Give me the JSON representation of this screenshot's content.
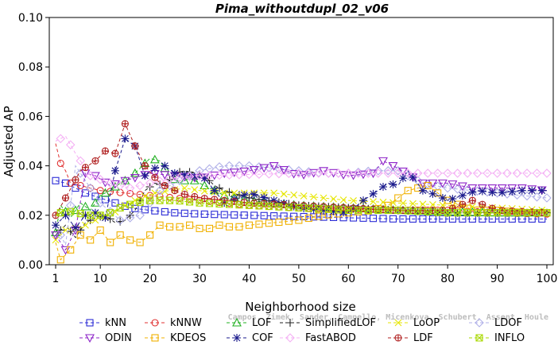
{
  "chart_data": {
    "type": "line",
    "title": "Pima_withoutdupl_02_v06",
    "xlabel": "Neighborhood size",
    "ylabel": "Adjusted AP",
    "xlim": [
      1,
      100
    ],
    "ylim": [
      0,
      0.1
    ],
    "x_ticks": [
      1,
      10,
      20,
      30,
      40,
      50,
      60,
      70,
      80,
      90,
      100
    ],
    "y_ticks": [
      0.0,
      0.02,
      0.04,
      0.06,
      0.08,
      0.1
    ],
    "y_tick_labels": [
      "0.00",
      "0.02",
      "0.04",
      "0.06",
      "0.08",
      "0.10"
    ],
    "grid": false,
    "legend_position": "bottom",
    "x_range": [
      1,
      100
    ],
    "series": [
      {
        "name": "kNN",
        "color": "#2b2bd6",
        "marker": "square",
        "points": [
          [
            1,
            0.034
          ],
          [
            3,
            0.033
          ],
          [
            5,
            0.031
          ],
          [
            7,
            0.029
          ],
          [
            10,
            0.027
          ],
          [
            13,
            0.025
          ],
          [
            16,
            0.023
          ],
          [
            20,
            0.022
          ],
          [
            25,
            0.021
          ],
          [
            30,
            0.0205
          ],
          [
            40,
            0.02
          ],
          [
            50,
            0.0195
          ],
          [
            60,
            0.019
          ],
          [
            70,
            0.0185
          ],
          [
            80,
            0.0185
          ],
          [
            90,
            0.0185
          ],
          [
            100,
            0.0185
          ]
        ]
      },
      {
        "name": "kNNW",
        "color": "#e03030",
        "marker": "circle",
        "points": [
          [
            1,
            0.049
          ],
          [
            2,
            0.041
          ],
          [
            3,
            0.038
          ],
          [
            4,
            0.033
          ],
          [
            6,
            0.032
          ],
          [
            8,
            0.031
          ],
          [
            10,
            0.03
          ],
          [
            15,
            0.029
          ],
          [
            20,
            0.028
          ],
          [
            25,
            0.027
          ],
          [
            30,
            0.026
          ],
          [
            40,
            0.024
          ],
          [
            50,
            0.023
          ],
          [
            60,
            0.0225
          ],
          [
            70,
            0.022
          ],
          [
            80,
            0.022
          ],
          [
            90,
            0.021
          ],
          [
            100,
            0.0205
          ]
        ]
      },
      {
        "name": "LOF",
        "color": "#22b022",
        "marker": "triangle-up",
        "points": [
          [
            1,
            0.013
          ],
          [
            2,
            0.024
          ],
          [
            4,
            0.019
          ],
          [
            6,
            0.025
          ],
          [
            8,
            0.022
          ],
          [
            10,
            0.028
          ],
          [
            12,
            0.03
          ],
          [
            14,
            0.033
          ],
          [
            16,
            0.035
          ],
          [
            18,
            0.039
          ],
          [
            20,
            0.043
          ],
          [
            22,
            0.042
          ],
          [
            24,
            0.036
          ],
          [
            26,
            0.033
          ],
          [
            28,
            0.035
          ],
          [
            30,
            0.033
          ],
          [
            35,
            0.028
          ],
          [
            40,
            0.026
          ],
          [
            50,
            0.024
          ],
          [
            60,
            0.023
          ],
          [
            70,
            0.022
          ],
          [
            80,
            0.0215
          ],
          [
            90,
            0.021
          ],
          [
            100,
            0.021
          ]
        ]
      },
      {
        "name": "SimplifiedLOF",
        "color": "#222222",
        "marker": "plus",
        "points": [
          [
            1,
            0.012
          ],
          [
            3,
            0.016
          ],
          [
            5,
            0.011
          ],
          [
            7,
            0.017
          ],
          [
            9,
            0.019
          ],
          [
            11,
            0.02
          ],
          [
            13,
            0.017
          ],
          [
            15,
            0.018
          ],
          [
            17,
            0.022
          ],
          [
            19,
            0.03
          ],
          [
            21,
            0.033
          ],
          [
            23,
            0.032
          ],
          [
            25,
            0.037
          ],
          [
            27,
            0.038
          ],
          [
            29,
            0.037
          ],
          [
            31,
            0.036
          ],
          [
            33,
            0.032
          ],
          [
            35,
            0.03
          ],
          [
            40,
            0.027
          ],
          [
            50,
            0.024
          ],
          [
            60,
            0.023
          ],
          [
            70,
            0.022
          ],
          [
            80,
            0.021
          ],
          [
            90,
            0.021
          ],
          [
            100,
            0.021
          ]
        ]
      },
      {
        "name": "LoOP",
        "color": "#e6e600",
        "marker": "x",
        "points": [
          [
            1,
            0.01
          ],
          [
            3,
            0.014
          ],
          [
            6,
            0.015
          ],
          [
            9,
            0.018
          ],
          [
            12,
            0.02
          ],
          [
            15,
            0.024
          ],
          [
            18,
            0.027
          ],
          [
            21,
            0.029
          ],
          [
            24,
            0.03
          ],
          [
            27,
            0.031
          ],
          [
            30,
            0.03
          ],
          [
            35,
            0.029
          ],
          [
            40,
            0.029
          ],
          [
            45,
            0.029
          ],
          [
            50,
            0.028
          ],
          [
            55,
            0.027
          ],
          [
            60,
            0.026
          ],
          [
            70,
            0.025
          ],
          [
            80,
            0.024
          ],
          [
            90,
            0.023
          ],
          [
            100,
            0.022
          ]
        ]
      },
      {
        "name": "LDOF",
        "color": "#b0b0e8",
        "marker": "diamond",
        "points": [
          [
            1,
            0.016
          ],
          [
            3,
            0.008
          ],
          [
            5,
            0.04
          ],
          [
            7,
            0.034
          ],
          [
            10,
            0.025
          ],
          [
            14,
            0.018
          ],
          [
            18,
            0.02
          ],
          [
            22,
            0.03
          ],
          [
            26,
            0.034
          ],
          [
            30,
            0.038
          ],
          [
            35,
            0.04
          ],
          [
            40,
            0.04
          ],
          [
            45,
            0.039
          ],
          [
            50,
            0.038
          ],
          [
            55,
            0.037
          ],
          [
            60,
            0.037
          ],
          [
            65,
            0.038
          ],
          [
            70,
            0.038
          ],
          [
            75,
            0.033
          ],
          [
            80,
            0.031
          ],
          [
            85,
            0.03
          ],
          [
            90,
            0.029
          ],
          [
            95,
            0.028
          ],
          [
            100,
            0.027
          ]
        ]
      },
      {
        "name": "ODIN",
        "color": "#8e24c8",
        "marker": "triangle-down",
        "points": [
          [
            1,
            0.012
          ],
          [
            3,
            0.006
          ],
          [
            5,
            0.014
          ],
          [
            7,
            0.037
          ],
          [
            9,
            0.036
          ],
          [
            12,
            0.032
          ],
          [
            15,
            0.034
          ],
          [
            20,
            0.037
          ],
          [
            25,
            0.036
          ],
          [
            30,
            0.035
          ],
          [
            35,
            0.037
          ],
          [
            40,
            0.038
          ],
          [
            45,
            0.04
          ],
          [
            50,
            0.036
          ],
          [
            55,
            0.038
          ],
          [
            60,
            0.036
          ],
          [
            65,
            0.037
          ],
          [
            67,
            0.042
          ],
          [
            70,
            0.039
          ],
          [
            75,
            0.033
          ],
          [
            80,
            0.033
          ],
          [
            85,
            0.031
          ],
          [
            90,
            0.031
          ],
          [
            95,
            0.031
          ],
          [
            100,
            0.03
          ]
        ]
      },
      {
        "name": "KDEOS",
        "color": "#f0b000",
        "marker": "square",
        "points": [
          [
            1,
            0.009
          ],
          [
            2,
            0.002
          ],
          [
            4,
            0.006
          ],
          [
            6,
            0.012
          ],
          [
            8,
            0.01
          ],
          [
            10,
            0.014
          ],
          [
            12,
            0.009
          ],
          [
            14,
            0.012
          ],
          [
            16,
            0.01
          ],
          [
            18,
            0.009
          ],
          [
            20,
            0.012
          ],
          [
            22,
            0.016
          ],
          [
            25,
            0.015
          ],
          [
            28,
            0.016
          ],
          [
            31,
            0.014
          ],
          [
            34,
            0.016
          ],
          [
            37,
            0.015
          ],
          [
            40,
            0.016
          ],
          [
            45,
            0.017
          ],
          [
            50,
            0.018
          ],
          [
            55,
            0.02
          ],
          [
            60,
            0.021
          ],
          [
            65,
            0.022
          ],
          [
            68,
            0.024
          ],
          [
            72,
            0.03
          ],
          [
            76,
            0.032
          ],
          [
            80,
            0.026
          ],
          [
            85,
            0.022
          ],
          [
            90,
            0.022
          ],
          [
            95,
            0.021
          ],
          [
            100,
            0.021
          ]
        ]
      },
      {
        "name": "COF",
        "color": "#1a1a8c",
        "marker": "star",
        "points": [
          [
            1,
            0.016
          ],
          [
            3,
            0.02
          ],
          [
            5,
            0.015
          ],
          [
            7,
            0.02
          ],
          [
            9,
            0.021
          ],
          [
            11,
            0.019
          ],
          [
            13,
            0.038
          ],
          [
            15,
            0.051
          ],
          [
            17,
            0.048
          ],
          [
            19,
            0.036
          ],
          [
            21,
            0.039
          ],
          [
            23,
            0.04
          ],
          [
            25,
            0.037
          ],
          [
            28,
            0.036
          ],
          [
            31,
            0.035
          ],
          [
            35,
            0.025
          ],
          [
            40,
            0.029
          ],
          [
            45,
            0.026
          ],
          [
            50,
            0.023
          ],
          [
            55,
            0.022
          ],
          [
            60,
            0.021
          ],
          [
            63,
            0.026
          ],
          [
            66,
            0.03
          ],
          [
            68,
            0.033
          ],
          [
            70,
            0.032
          ],
          [
            72,
            0.038
          ],
          [
            75,
            0.03
          ],
          [
            78,
            0.028
          ],
          [
            80,
            0.026
          ],
          [
            83,
            0.028
          ],
          [
            86,
            0.03
          ],
          [
            90,
            0.029
          ],
          [
            95,
            0.03
          ],
          [
            100,
            0.03
          ]
        ]
      },
      {
        "name": "FastABOD",
        "color": "#f4b0f4",
        "marker": "diamond",
        "points": [
          [
            1,
            0.05
          ],
          [
            3,
            0.052
          ],
          [
            5,
            0.045
          ],
          [
            8,
            0.036
          ],
          [
            12,
            0.033
          ],
          [
            16,
            0.031
          ],
          [
            20,
            0.033
          ],
          [
            25,
            0.035
          ],
          [
            30,
            0.036
          ],
          [
            40,
            0.0365
          ],
          [
            50,
            0.037
          ],
          [
            60,
            0.037
          ],
          [
            70,
            0.037
          ],
          [
            80,
            0.037
          ],
          [
            90,
            0.037
          ],
          [
            100,
            0.037
          ]
        ]
      },
      {
        "name": "LDF",
        "color": "#b02020",
        "marker": "circle-plus",
        "points": [
          [
            1,
            0.02
          ],
          [
            3,
            0.027
          ],
          [
            6,
            0.038
          ],
          [
            9,
            0.042
          ],
          [
            11,
            0.046
          ],
          [
            13,
            0.045
          ],
          [
            15,
            0.057
          ],
          [
            17,
            0.048
          ],
          [
            19,
            0.04
          ],
          [
            22,
            0.033
          ],
          [
            26,
            0.029
          ],
          [
            30,
            0.027
          ],
          [
            35,
            0.026
          ],
          [
            40,
            0.025
          ],
          [
            50,
            0.024
          ],
          [
            60,
            0.023
          ],
          [
            70,
            0.022
          ],
          [
            80,
            0.022
          ],
          [
            85,
            0.026
          ],
          [
            90,
            0.022
          ],
          [
            100,
            0.021
          ]
        ]
      },
      {
        "name": "INFLO",
        "color": "#a8d800",
        "marker": "square-x",
        "points": [
          [
            1,
            0.02
          ],
          [
            3,
            0.022
          ],
          [
            5,
            0.021
          ],
          [
            8,
            0.02
          ],
          [
            11,
            0.02
          ],
          [
            15,
            0.024
          ],
          [
            20,
            0.026
          ],
          [
            25,
            0.026
          ],
          [
            30,
            0.025
          ],
          [
            40,
            0.024
          ],
          [
            50,
            0.023
          ],
          [
            60,
            0.022
          ],
          [
            70,
            0.022
          ],
          [
            80,
            0.021
          ],
          [
            90,
            0.021
          ],
          [
            100,
            0.021
          ]
        ]
      }
    ]
  },
  "watermark": "Campos, Zimek, Sander, Campello, Micenkova, Schubert, Assent, Houle"
}
